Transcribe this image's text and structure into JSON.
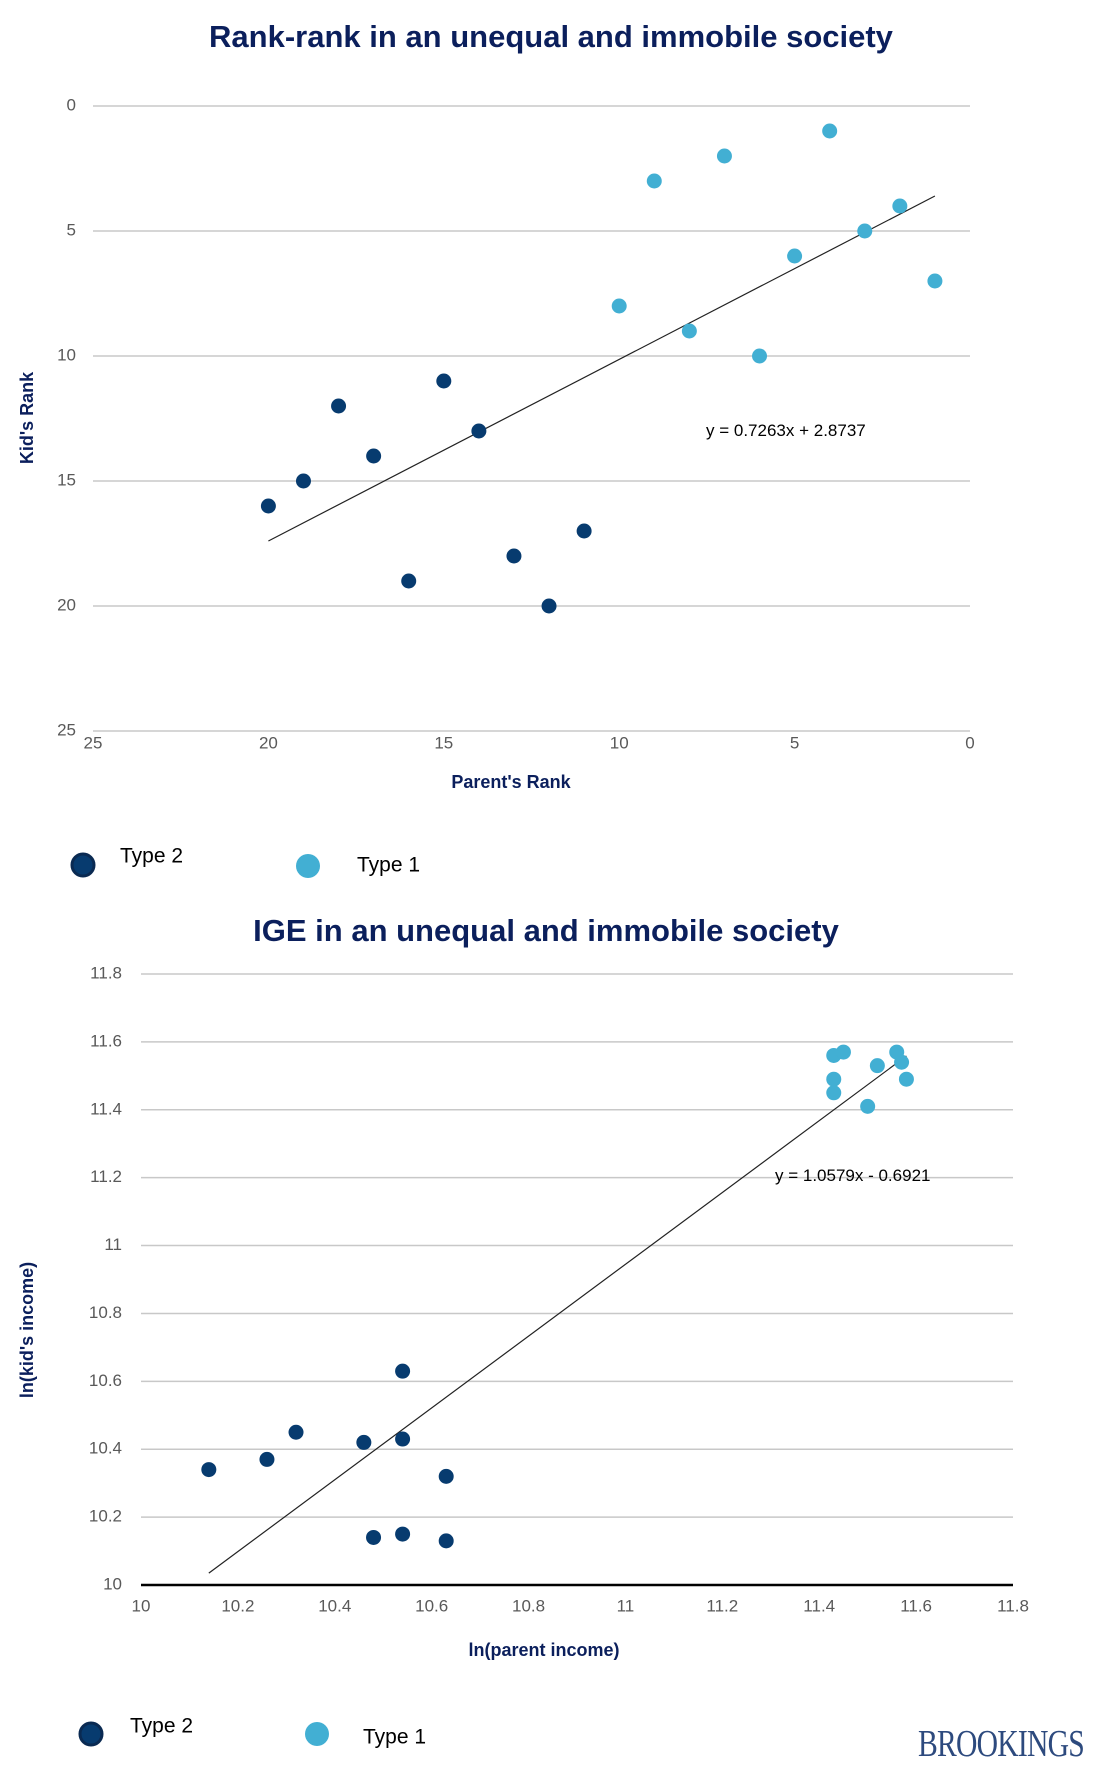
{
  "chart_data": [
    {
      "type": "scatter",
      "title": "Rank-rank in an unequal and immobile society",
      "xlabel": "Parent's Rank",
      "ylabel": "Kid's Rank",
      "xlim": [
        25,
        0
      ],
      "ylim": [
        25,
        0
      ],
      "x_reversed": true,
      "y_reversed": true,
      "xticks": [
        "25",
        "20",
        "15",
        "10",
        "5",
        "0"
      ],
      "xtick_values": [
        25,
        20,
        15,
        10,
        5,
        0
      ],
      "yticks": [
        "0",
        "5",
        "10",
        "15",
        "20",
        "25"
      ],
      "ytick_values": [
        0,
        5,
        10,
        15,
        20,
        25
      ],
      "grid": "horizontal",
      "legend_position": "bottom-left",
      "series": [
        {
          "name": "Type 2",
          "color": "#073b6f",
          "points": [
            [
              20,
              16
            ],
            [
              19,
              15
            ],
            [
              18,
              12
            ],
            [
              17,
              14
            ],
            [
              16,
              19
            ],
            [
              15,
              11
            ],
            [
              14,
              13
            ],
            [
              13,
              18
            ],
            [
              12,
              20
            ],
            [
              11,
              17
            ]
          ]
        },
        {
          "name": "Type 1",
          "color": "#42afd3",
          "points": [
            [
              10,
              8
            ],
            [
              9,
              3
            ],
            [
              8,
              9
            ],
            [
              7,
              2
            ],
            [
              6,
              10
            ],
            [
              5,
              6
            ],
            [
              4,
              1
            ],
            [
              3,
              5
            ],
            [
              2,
              4
            ],
            [
              1,
              7
            ]
          ]
        }
      ],
      "trendline": {
        "label": "y = 0.7263x + 2.8737",
        "slope": 0.7263,
        "intercept": 2.8737,
        "x_range": [
          20,
          1
        ]
      },
      "legend": [
        {
          "label": "Type 2",
          "color": "#073b6f"
        },
        {
          "label": "Type 1",
          "color": "#42afd3"
        }
      ]
    },
    {
      "type": "scatter",
      "title": "IGE in an unequal and immobile society",
      "xlabel": "ln(parent income)",
      "ylabel": "ln(kid's income)",
      "xlim": [
        10,
        11.8
      ],
      "ylim": [
        10,
        11.8
      ],
      "xticks": [
        "10",
        "10.2",
        "10.4",
        "10.6",
        "10.8",
        "11",
        "11.2",
        "11.4",
        "11.6",
        "11.8"
      ],
      "xtick_values": [
        10,
        10.2,
        10.4,
        10.6,
        10.8,
        11,
        11.2,
        11.4,
        11.6,
        11.8
      ],
      "yticks": [
        "10",
        "10.2",
        "10.4",
        "10.6",
        "10.8",
        "11",
        "11.2",
        "11.4",
        "11.6",
        "11.8"
      ],
      "ytick_values": [
        10,
        10.2,
        10.4,
        10.6,
        10.8,
        11,
        11.2,
        11.4,
        11.6,
        11.8
      ],
      "grid": "horizontal",
      "legend_position": "bottom-left",
      "series": [
        {
          "name": "Type 2",
          "color": "#073b6f",
          "points": [
            [
              10.14,
              10.34
            ],
            [
              10.26,
              10.37
            ],
            [
              10.32,
              10.45
            ],
            [
              10.46,
              10.42
            ],
            [
              10.54,
              10.63
            ],
            [
              10.54,
              10.43
            ],
            [
              10.63,
              10.32
            ],
            [
              10.48,
              10.14
            ],
            [
              10.54,
              10.15
            ],
            [
              10.63,
              10.13
            ]
          ]
        },
        {
          "name": "Type 1",
          "color": "#42afd3",
          "points": [
            [
              11.43,
              11.56
            ],
            [
              11.45,
              11.57
            ],
            [
              11.56,
              11.57
            ],
            [
              11.57,
              11.54
            ],
            [
              11.52,
              11.53
            ],
            [
              11.43,
              11.49
            ],
            [
              11.43,
              11.45
            ],
            [
              11.58,
              11.49
            ],
            [
              11.5,
              11.41
            ]
          ]
        }
      ],
      "trendline": {
        "label": "y = 1.0579x - 0.6921",
        "slope": 1.0579,
        "intercept": -0.6921,
        "x_range": [
          10.14,
          11.58
        ]
      },
      "legend": [
        {
          "label": "Type 2",
          "color": "#073b6f"
        },
        {
          "label": "Type 1",
          "color": "#42afd3"
        }
      ]
    }
  ],
  "branding": {
    "logo_text": "BROOKINGS",
    "logo_color": "#2d4a7e"
  }
}
